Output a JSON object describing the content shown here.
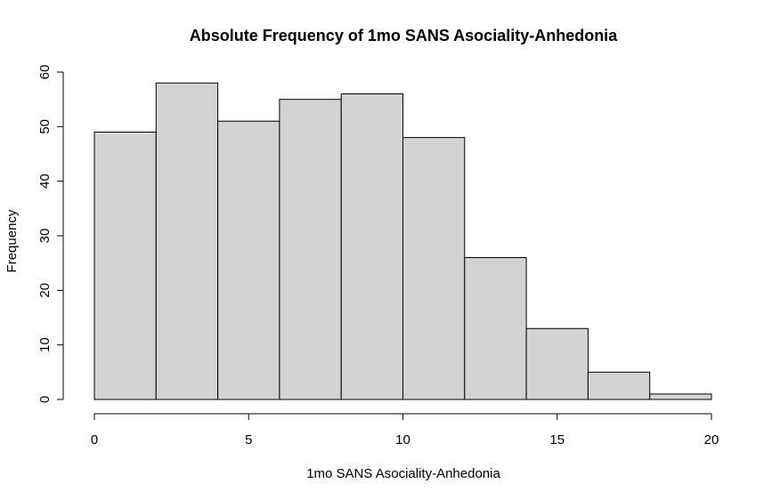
{
  "chart_data": {
    "type": "bar",
    "title": "Absolute Frequency of 1mo SANS Asociality-Anhedonia",
    "xlabel": "1mo SANS Asociality-Anhedonia",
    "ylabel": "Frequency",
    "bins": [
      {
        "from": 0,
        "to": 2,
        "count": 49
      },
      {
        "from": 2,
        "to": 4,
        "count": 58
      },
      {
        "from": 4,
        "to": 6,
        "count": 51
      },
      {
        "from": 6,
        "to": 8,
        "count": 55
      },
      {
        "from": 8,
        "to": 10,
        "count": 56
      },
      {
        "from": 10,
        "to": 12,
        "count": 48
      },
      {
        "from": 12,
        "to": 14,
        "count": 26
      },
      {
        "from": 14,
        "to": 16,
        "count": 13
      },
      {
        "from": 16,
        "to": 18,
        "count": 5
      },
      {
        "from": 18,
        "to": 20,
        "count": 1
      }
    ],
    "xlim": [
      0,
      20
    ],
    "ylim": [
      0,
      60
    ],
    "xticks": [
      0,
      5,
      10,
      15,
      20
    ],
    "yticks": [
      0,
      10,
      20,
      30,
      40,
      50,
      60
    ],
    "grid": false,
    "bar_fill": "#d3d3d3",
    "bar_stroke": "#000000"
  }
}
